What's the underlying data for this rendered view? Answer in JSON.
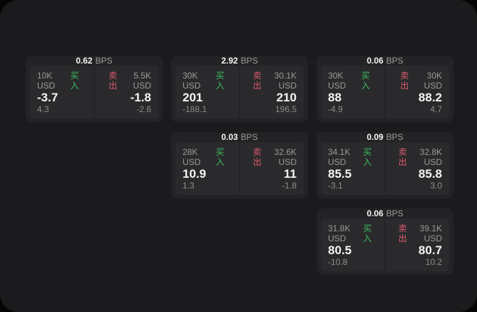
{
  "labels": {
    "bps_unit": "BPS",
    "buy": "买入",
    "sell": "卖出"
  },
  "colors": {
    "panel": "#1b1b1d",
    "card": "#232325",
    "tile": "#2a2a2c",
    "value": "#f5f5f5",
    "muted": "#9b9b9b",
    "dim": "#8d8d8d",
    "buy": "#3dbd61",
    "sell": "#dd5a6e"
  },
  "cards": [
    {
      "bps": "0.62",
      "buy": {
        "amount": "10K USD",
        "price": "-3.7",
        "change": "4.3"
      },
      "sell": {
        "amount": "5.5K USD",
        "price": "-1.8",
        "change": "-2.6"
      }
    },
    {
      "bps": "2.92",
      "buy": {
        "amount": "30K USD",
        "price": "201",
        "change": "-188.1"
      },
      "sell": {
        "amount": "30.1K USD",
        "price": "210",
        "change": "196.5"
      }
    },
    {
      "bps": "0.06",
      "buy": {
        "amount": "30K USD",
        "price": "88",
        "change": "-4.9"
      },
      "sell": {
        "amount": "30K USD",
        "price": "88.2",
        "change": "4.7"
      }
    },
    {
      "bps": "0.03",
      "buy": {
        "amount": "28K USD",
        "price": "10.9",
        "change": "1.3"
      },
      "sell": {
        "amount": "32.6K USD",
        "price": "11",
        "change": "-1.8"
      }
    },
    {
      "bps": "0.09",
      "buy": {
        "amount": "34.1K USD",
        "price": "85.5",
        "change": "-3.1"
      },
      "sell": {
        "amount": "32.8K USD",
        "price": "85.8",
        "change": "3.0"
      }
    },
    {
      "bps": "0.06",
      "buy": {
        "amount": "31.8K USD",
        "price": "80.5",
        "change": "-10.8"
      },
      "sell": {
        "amount": "39.1K USD",
        "price": "80.7",
        "change": "10.2"
      }
    }
  ]
}
